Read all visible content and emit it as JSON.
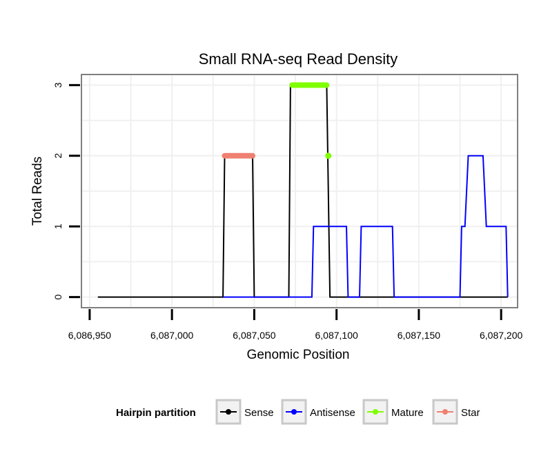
{
  "chart_data": {
    "type": "line",
    "title": "Small RNA-seq Read Density",
    "xlabel": "Genomic Position",
    "ylabel": "Total Reads",
    "xlim": [
      6086945,
      6087210
    ],
    "ylim": [
      -0.15,
      3.15
    ],
    "x_ticks": [
      6086950,
      6087000,
      6087050,
      6087100,
      6087150,
      6087200
    ],
    "x_tick_labels": [
      "6,086,950",
      "6,087,000",
      "6,087,050",
      "6,087,100",
      "6,087,150",
      "6,087,200"
    ],
    "y_ticks": [
      0,
      1,
      2,
      3
    ],
    "y_tick_labels": [
      "0",
      "1",
      "2",
      "3"
    ],
    "grid": true,
    "legend_position": "bottom",
    "legend_title": "Hairpin partition",
    "series": [
      {
        "name": "Sense",
        "color": "#000000",
        "style": "line",
        "points": [
          [
            6086955,
            0
          ],
          [
            6087031,
            0
          ],
          [
            6087032,
            2
          ],
          [
            6087049,
            2
          ],
          [
            6087050,
            0
          ],
          [
            6087071,
            0
          ],
          [
            6087072,
            3
          ],
          [
            6087094,
            3
          ],
          [
            6087096,
            0
          ],
          [
            6087204,
            0
          ]
        ]
      },
      {
        "name": "Antisense",
        "color": "#0000ff",
        "style": "line",
        "points": [
          [
            6087031,
            0
          ],
          [
            6087085,
            0
          ],
          [
            6087086,
            1
          ],
          [
            6087106,
            1
          ],
          [
            6087107,
            0
          ],
          [
            6087114,
            0
          ],
          [
            6087115,
            1
          ],
          [
            6087134,
            1
          ],
          [
            6087135,
            0
          ],
          [
            6087175,
            0
          ],
          [
            6087176,
            1
          ],
          [
            6087178,
            1
          ],
          [
            6087180,
            2
          ],
          [
            6087189,
            2
          ],
          [
            6087191,
            1
          ],
          [
            6087203,
            1
          ],
          [
            6087204,
            0
          ]
        ]
      },
      {
        "name": "Mature",
        "color": "#80ff00",
        "style": "points",
        "segments": [
          {
            "x_start": 6087073,
            "x_end": 6087094,
            "y": 3
          }
        ],
        "points": [
          [
            6087095,
            2
          ]
        ]
      },
      {
        "name": "Star",
        "color": "#f08070",
        "style": "points",
        "segments": [
          {
            "x_start": 6087032,
            "x_end": 6087049,
            "y": 2
          }
        ],
        "points": []
      }
    ]
  }
}
